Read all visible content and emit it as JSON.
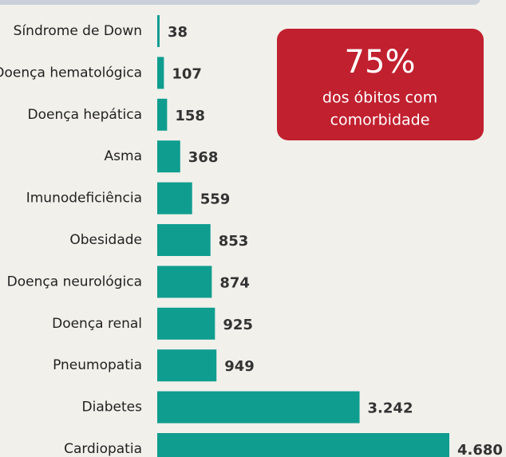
{
  "chart_data": {
    "type": "bar",
    "orientation": "horizontal",
    "categories": [
      "Síndrome de Down",
      "Doença hematológica",
      "Doença hepática",
      "Asma",
      "Imunodeficiência",
      "Obesidade",
      "Doença neurológica",
      "Doença renal",
      "Pneumopatia",
      "Diabetes",
      "Cardiopatia"
    ],
    "values": [
      38,
      107,
      158,
      368,
      559,
      853,
      874,
      925,
      949,
      3242,
      4680
    ],
    "value_labels": [
      "38",
      "107",
      "158",
      "368",
      "559",
      "853",
      "874",
      "925",
      "949",
      "3.242",
      "4.680"
    ],
    "color": "#0f9d8f",
    "annotation": {
      "headline": "75%",
      "lines": [
        "dos óbitos com",
        "comorbidade"
      ],
      "color": "#c1202f"
    }
  }
}
